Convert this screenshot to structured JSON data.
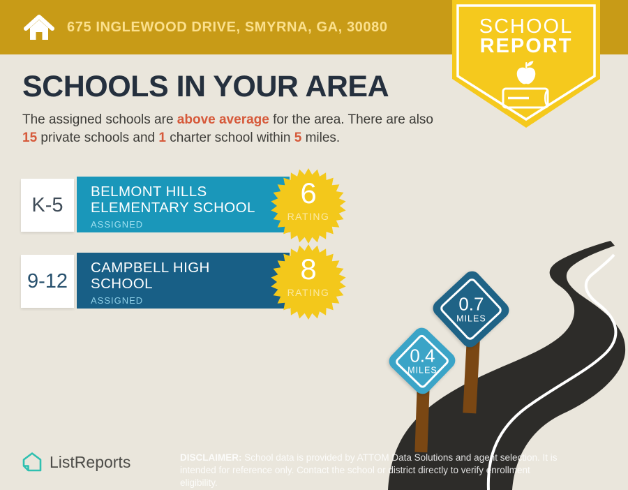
{
  "header": {
    "address": "675 INGLEWOOD DRIVE, SMYRNA, GA, 30080",
    "badge": {
      "line1": "SCHOOL",
      "line2": "REPORT"
    }
  },
  "main": {
    "title": "SCHOOLS IN YOUR AREA",
    "intro": {
      "seg1": "The assigned schools are ",
      "highlight1": "above average",
      "seg2": " for the area. There are also ",
      "highlight2": "15",
      "seg3": " private schools and ",
      "highlight3": "1",
      "seg4": " charter school within ",
      "highlight4": "5",
      "seg5": " miles."
    }
  },
  "schools": [
    {
      "grades": "K-5",
      "name_line1": "BELMONT HILLS",
      "name_line2": "ELEMENTARY SCHOOL",
      "status": "ASSIGNED",
      "rating": "6",
      "rating_label": "RATING"
    },
    {
      "grades": "9-12",
      "name_line1": "CAMPBELL HIGH",
      "name_line2": "SCHOOL",
      "status": "ASSIGNED",
      "rating": "8",
      "rating_label": "RATING"
    }
  ],
  "signs": [
    {
      "value": "0.7",
      "unit": "MILES"
    },
    {
      "value": "0.4",
      "unit": "MILES"
    }
  ],
  "footer": {
    "brand": "ListReports",
    "disclaimer_label": "DISCLAIMER:",
    "disclaimer_text": " School data is provided by ATTOM Data Solutions and agent selection. It is intended for reference only. Contact the school or district directly to verify enrollment eligibility."
  },
  "colors": {
    "gold_bar": "#c89b17",
    "badge_yellow": "#f5c91d",
    "starburst_yellow": "#f3c81b",
    "teal_bar": "#1a97ba",
    "dark_blue_bar": "#185f86",
    "accent_orange": "#d6593a",
    "heading_navy": "#25303e",
    "background_beige": "#eae6dc",
    "road_charcoal": "#2d2c29",
    "sign_dark": "#1f6386",
    "sign_light": "#3ba4c7",
    "post_brown": "#7a4713",
    "logo_teal": "#2fc0b0"
  }
}
